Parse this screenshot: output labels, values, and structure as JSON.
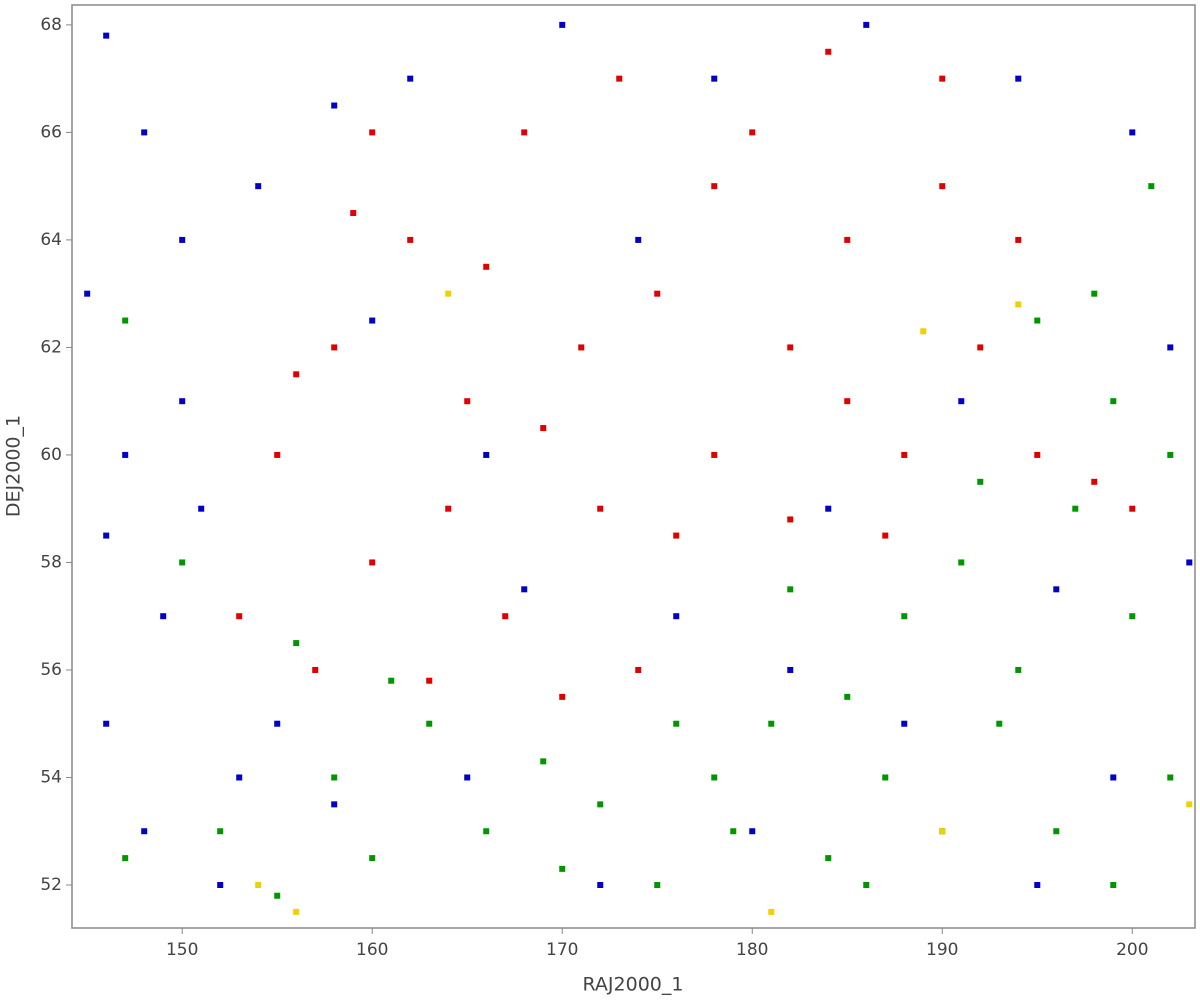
{
  "chart_data": {
    "type": "scatter",
    "x_label": "RAJ2000_1",
    "y_label": "DEJ2000_1",
    "xlim": [
      144.2,
      203.3
    ],
    "ylim": [
      51.2,
      68.37
    ],
    "xticks": [
      150,
      160,
      170,
      180,
      190,
      200
    ],
    "yticks": [
      52,
      54,
      56,
      58,
      60,
      62,
      64,
      66,
      68
    ],
    "series": [
      {
        "color": "#0000c8",
        "x": [
          146,
          148,
          150,
          147,
          149,
          146,
          148,
          152,
          145,
          151,
          154,
          158,
          162,
          170,
          178,
          186,
          194,
          200,
          202,
          203,
          199,
          195,
          188,
          180,
          172,
          165,
          158,
          155,
          176,
          184,
          191,
          166,
          160,
          174,
          182,
          196,
          150,
          146,
          153,
          168
        ],
        "values": [
          67.8,
          66,
          64,
          60,
          57,
          55,
          53,
          52,
          63,
          59,
          65,
          66.5,
          67,
          68,
          67,
          68,
          67,
          66,
          62,
          58,
          54,
          52,
          55,
          53,
          52,
          54,
          53.5,
          55,
          57,
          59,
          61,
          60,
          62.5,
          64,
          56,
          57.5,
          61,
          58.5,
          54,
          57.5
        ]
      },
      {
        "color": "#e00000",
        "x": [
          155,
          158,
          160,
          162,
          165,
          167,
          170,
          172,
          175,
          178,
          180,
          182,
          185,
          188,
          190,
          192,
          195,
          198,
          200,
          153,
          157,
          163,
          168,
          173,
          178,
          184,
          190,
          187,
          176,
          164,
          159,
          171,
          166,
          182,
          194,
          160,
          174,
          169,
          156,
          185
        ],
        "values": [
          60,
          62,
          58,
          64,
          61,
          57,
          55.5,
          59,
          63,
          60,
          66,
          62,
          64,
          60,
          65,
          62,
          60,
          59.5,
          59,
          57,
          56,
          55.8,
          66,
          67,
          65,
          67.5,
          67,
          58.5,
          58.5,
          59,
          64.5,
          62,
          63.5,
          58.8,
          64,
          66,
          56,
          60.5,
          61.5,
          61
        ]
      },
      {
        "color": "#009600",
        "x": [
          147,
          150,
          152,
          155,
          158,
          160,
          163,
          166,
          169,
          172,
          175,
          178,
          181,
          184,
          187,
          190,
          193,
          196,
          199,
          202,
          200,
          197,
          194,
          191,
          188,
          185,
          182,
          179,
          176,
          198,
          201,
          199,
          195,
          192,
          156,
          161,
          170,
          186,
          202,
          147
        ],
        "values": [
          62.5,
          58,
          53,
          51.8,
          54,
          52.5,
          55,
          53,
          54.3,
          53.5,
          52,
          54,
          55,
          52.5,
          54,
          53,
          55,
          53,
          52,
          54,
          57,
          59,
          56,
          58,
          57,
          55.5,
          57.5,
          53,
          55,
          63,
          65,
          61,
          62.5,
          59.5,
          56.5,
          55.8,
          52.3,
          52,
          60,
          52.5
        ]
      },
      {
        "color": "#f0d000",
        "x": [
          164,
          189,
          194,
          154,
          156,
          181,
          190,
          203
        ],
        "values": [
          63,
          62.3,
          62.8,
          52,
          51.5,
          51.5,
          53,
          53.5
        ]
      }
    ]
  }
}
